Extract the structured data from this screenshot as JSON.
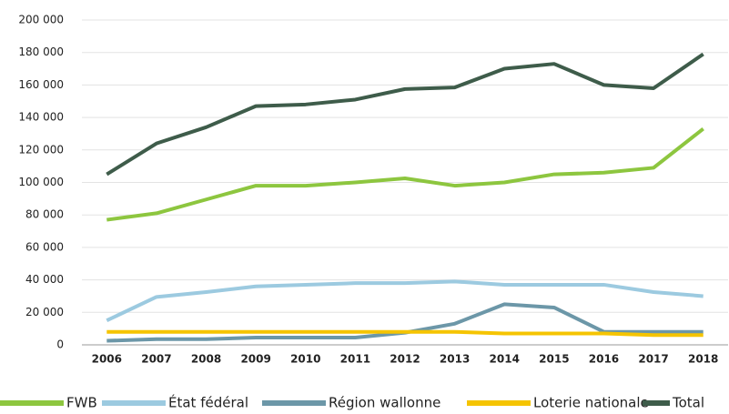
{
  "chart_data": {
    "type": "line",
    "categories": [
      "2006",
      "2007",
      "2008",
      "2009",
      "2010",
      "2011",
      "2012",
      "2013",
      "2014",
      "2015",
      "2016",
      "2017",
      "2018"
    ],
    "series": [
      {
        "name": "FWB",
        "color": "#8dc63f",
        "values": [
          77000,
          81000,
          89500,
          98000,
          98000,
          100000,
          102500,
          98000,
          100000,
          105000,
          106000,
          109000,
          133000
        ]
      },
      {
        "name": "État fédéral",
        "color": "#9ccae0",
        "values": [
          15000,
          29500,
          32500,
          36000,
          37000,
          38000,
          38000,
          39000,
          37000,
          37000,
          37000,
          32500,
          30000
        ]
      },
      {
        "name": "Région wallonne",
        "color": "#6c97a8",
        "values": [
          2500,
          3500,
          3500,
          4500,
          4500,
          4500,
          7500,
          13000,
          25000,
          23000,
          8000,
          8000,
          8000
        ]
      },
      {
        "name": "Loterie nationale",
        "color": "#f5c400",
        "values": [
          8000,
          8000,
          8000,
          8000,
          8000,
          8000,
          8000,
          8000,
          7000,
          7000,
          7000,
          6000,
          6000
        ]
      },
      {
        "name": "Total",
        "color": "#3e5c4a",
        "values": [
          105000,
          124000,
          134000,
          147000,
          148000,
          151000,
          157500,
          158500,
          170000,
          173000,
          160000,
          158000,
          179000
        ]
      }
    ],
    "ylim": [
      0,
      200000
    ],
    "yticks": [
      0,
      {
        "value": 20000,
        "label": "20 000"
      },
      {
        "value": 40000,
        "label": "40 000"
      },
      {
        "value": 60000,
        "label": "60 000"
      },
      {
        "value": 80000,
        "label": "80 000"
      },
      {
        "value": 100000,
        "label": "100 000"
      },
      {
        "value": 120000,
        "label": "120 000"
      },
      {
        "value": 140000,
        "label": "140 000"
      },
      {
        "value": 160000,
        "label": "160 000"
      },
      {
        "value": 180000,
        "label": "180 000"
      },
      {
        "value": 200000,
        "label": "200 000"
      }
    ],
    "grid": true,
    "legend": "bottom"
  }
}
